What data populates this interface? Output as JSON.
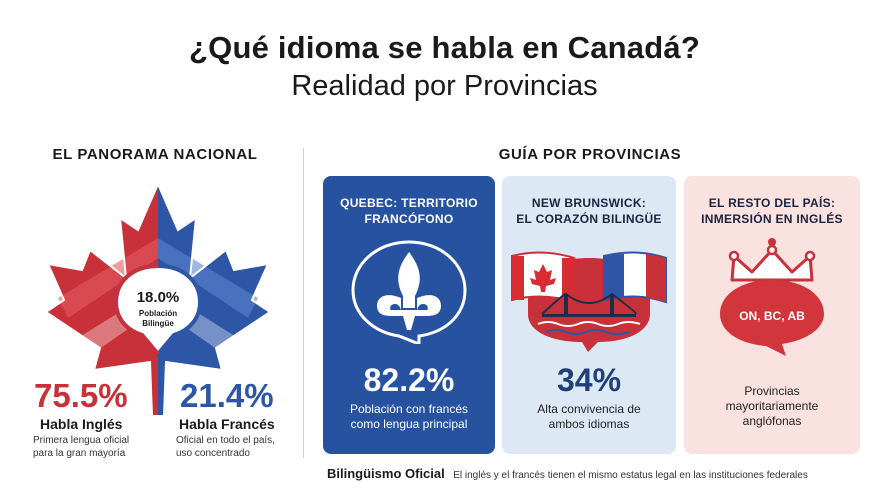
{
  "header": {
    "title_line1": "¿Qué idioma se habla en Canadá?",
    "title_line2": "Realidad por Provincias"
  },
  "national": {
    "heading": "EL PANORAMA NACIONAL",
    "bilingual_value": "18.0%",
    "bilingual_label_1": "Población",
    "bilingual_label_2": "Bilingüe",
    "english": {
      "value": "75.5%",
      "label": "Habla Inglés",
      "desc_1": "Primera lengua oficial",
      "desc_2": "para la gran mayoría"
    },
    "french": {
      "value": "21.4%",
      "label": "Habla Francés",
      "desc_1": "Oficial en todo el país,",
      "desc_2": "uso concentrado"
    }
  },
  "provinces": {
    "heading": "GUÍA POR PROVINCIAS",
    "quebec": {
      "title_1": "QUEBEC: TERRITORIO",
      "title_2": "FRANCÓFONO",
      "value": "82.2%",
      "desc_1": "Población con francés",
      "desc_2": "como lengua principal"
    },
    "new_brunswick": {
      "title_1": "NEW BRUNSWICK:",
      "title_2": "EL CORAZÓN BILINGÜE",
      "value": "34%",
      "desc_1": "Alta convivencia de",
      "desc_2": "ambos idiomas"
    },
    "rest": {
      "title_1": "EL RESTO DEL PAÍS:",
      "title_2": "INMERSIÓN EN INGLÉS",
      "badge": "ON, BC, AB",
      "desc_1": "Provincias",
      "desc_2": "mayoritariamente",
      "desc_3": "anglófonas"
    }
  },
  "footer": {
    "strong": "Bilingüismo Oficial",
    "text": "El inglés y el francés tienen el mismo estatus legal en las instituciones federales"
  },
  "colors": {
    "red": "#c8313a",
    "blue": "#2d56a6",
    "quebec_card": "#2752a0",
    "nb_card": "#dde8f5",
    "rest_card": "#f9e2e0"
  }
}
